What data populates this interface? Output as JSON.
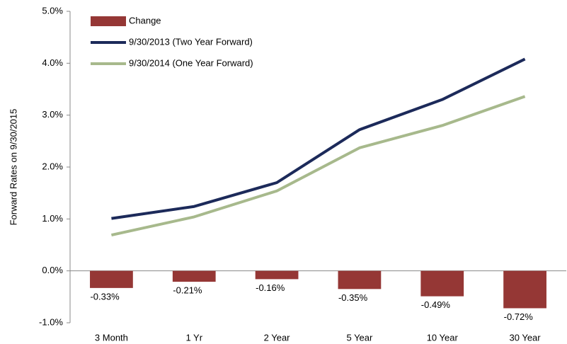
{
  "chart_data": {
    "type": "combo",
    "y_label": "Forward Rates on 9/30/2015",
    "categories": [
      "3 Month",
      "1 Yr",
      "2 Year",
      "5 Year",
      "10 Year",
      "30 Year"
    ],
    "series": [
      {
        "name": "Change",
        "type": "bar",
        "color": "#953735",
        "values": [
          -0.33,
          -0.21,
          -0.16,
          -0.35,
          -0.49,
          -0.72
        ],
        "value_labels": [
          "-0.33%",
          "-0.21%",
          "-0.16%",
          "-0.35%",
          "-0.49%",
          "-0.72%"
        ]
      },
      {
        "name": "9/30/2013 (Two Year Forward)",
        "type": "line",
        "color": "#1c2a5a",
        "values": [
          1.01,
          1.24,
          1.7,
          2.72,
          3.3,
          4.08
        ]
      },
      {
        "name": "9/30/2014 (One Year Forward)",
        "type": "line",
        "color": "#a7b98c",
        "values": [
          0.69,
          1.04,
          1.54,
          2.37,
          2.8,
          3.36
        ]
      }
    ],
    "ylim": [
      -1.0,
      5.0
    ],
    "yticks": [
      {
        "value": -1.0,
        "label": "-1.0%"
      },
      {
        "value": 0.0,
        "label": "0.0%"
      },
      {
        "value": 1.0,
        "label": "1.0%"
      },
      {
        "value": 2.0,
        "label": "2.0%"
      },
      {
        "value": 3.0,
        "label": "3.0%"
      },
      {
        "value": 4.0,
        "label": "4.0%"
      },
      {
        "value": 5.0,
        "label": "5.0%"
      }
    ],
    "legend": "upper-left"
  }
}
